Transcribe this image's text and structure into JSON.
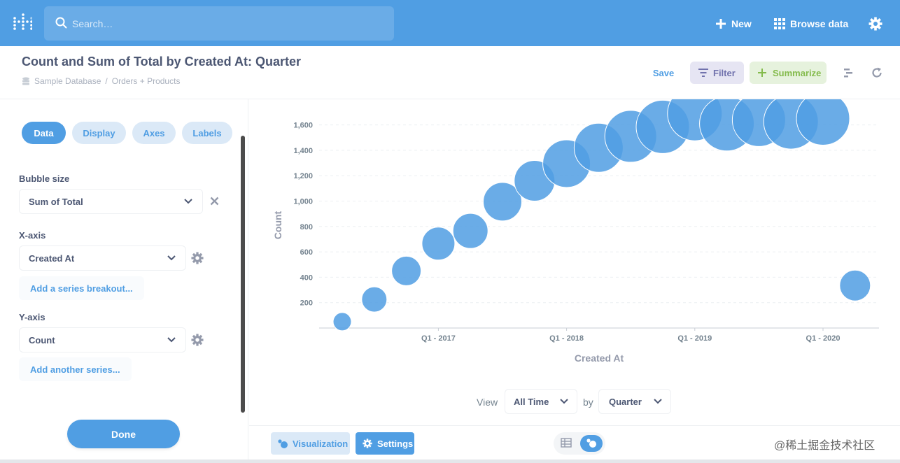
{
  "nav": {
    "search_placeholder": "Search…",
    "new_label": "New",
    "browse_label": "Browse data"
  },
  "header": {
    "title": "Count and Sum of Total by Created At: Quarter",
    "breadcrumb": [
      "Sample Database",
      "/",
      "Orders + Products"
    ],
    "save_label": "Save",
    "filter_label": "Filter",
    "summarize_label": "Summarize"
  },
  "sidebar": {
    "tabs": [
      "Data",
      "Display",
      "Axes",
      "Labels"
    ],
    "bubble_size_label": "Bubble size",
    "bubble_size_value": "Sum of Total",
    "x_axis_label": "X-axis",
    "x_axis_value": "Created At",
    "add_breakout_label": "Add a series breakout...",
    "y_axis_label": "Y-axis",
    "y_axis_value": "Count",
    "add_series_label": "Add another series...",
    "done_label": "Done"
  },
  "view": {
    "view_label": "View",
    "range_value": "All Time",
    "by_label": "by",
    "unit_value": "Quarter"
  },
  "footer": {
    "visualization_label": "Visualization",
    "settings_label": "Settings",
    "watermark": "@稀土掘金技术社区"
  },
  "colors": {
    "nav": "#509ee3",
    "bubble": "#509ee3",
    "filter": "#7172ad",
    "summarize": "#84bb4c"
  },
  "chart_data": {
    "type": "scatter",
    "xlabel": "Created At",
    "ylabel": "Count",
    "x_ticks": [
      "Q1 - 2017",
      "Q1 - 2018",
      "Q1 - 2019",
      "Q1 - 2020"
    ],
    "y_ticks": [
      200,
      400,
      600,
      800,
      1000,
      1200,
      1400,
      1600
    ],
    "ylim": [
      0,
      1700
    ],
    "grid": true,
    "points": [
      {
        "x": "Q2 - 2016",
        "y": 50,
        "size": 13
      },
      {
        "x": "Q3 - 2016",
        "y": 225,
        "size": 18
      },
      {
        "x": "Q4 - 2016",
        "y": 450,
        "size": 21
      },
      {
        "x": "Q1 - 2017",
        "y": 665,
        "size": 23.5
      },
      {
        "x": "Q2 - 2017",
        "y": 765,
        "size": 25
      },
      {
        "x": "Q3 - 2017",
        "y": 995,
        "size": 27.5
      },
      {
        "x": "Q4 - 2017",
        "y": 1160,
        "size": 29
      },
      {
        "x": "Q1 - 2018",
        "y": 1295,
        "size": 34
      },
      {
        "x": "Q2 - 2018",
        "y": 1420,
        "size": 35
      },
      {
        "x": "Q3 - 2018",
        "y": 1510,
        "size": 37
      },
      {
        "x": "Q4 - 2018",
        "y": 1585,
        "size": 38
      },
      {
        "x": "Q1 - 2019",
        "y": 1690,
        "size": 39
      },
      {
        "x": "Q2 - 2019",
        "y": 1610,
        "size": 39
      },
      {
        "x": "Q3 - 2019",
        "y": 1640,
        "size": 38
      },
      {
        "x": "Q4 - 2019",
        "y": 1625,
        "size": 39
      },
      {
        "x": "Q1 - 2020",
        "y": 1650,
        "size": 38
      },
      {
        "x": "Q2 - 2020",
        "y": 335,
        "size": 22
      }
    ]
  }
}
